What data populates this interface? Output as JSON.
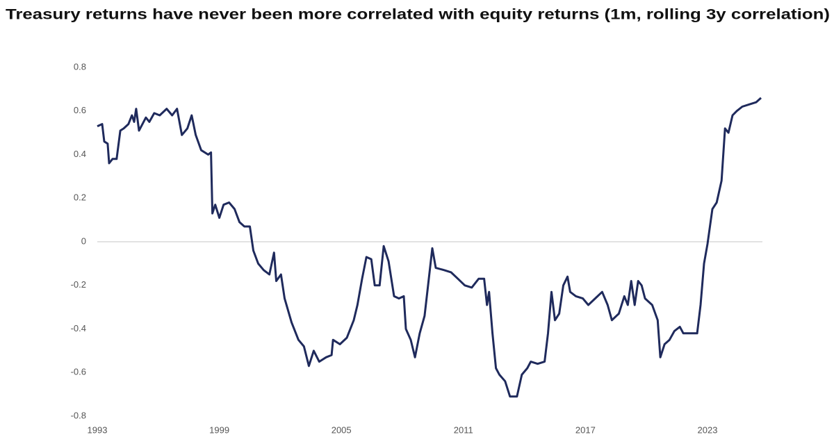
{
  "chart_data": {
    "type": "line",
    "title": "Treasury returns have never been more correlated with equity returns (1m, rolling 3y correlation)",
    "x": [
      1993,
      1993.24,
      1993.34,
      1993.51,
      1993.58,
      1993.75,
      1993.95,
      1994.13,
      1994.3,
      1994.53,
      1994.7,
      1994.81,
      1994.91,
      1995.05,
      1995.22,
      1995.39,
      1995.56,
      1995.8,
      1996.07,
      1996.41,
      1996.68,
      1996.92,
      1997.16,
      1997.43,
      1997.64,
      1997.84,
      1998.11,
      1998.45,
      1998.59,
      1998.66,
      1998.8,
      1999,
      1999.21,
      1999.48,
      1999.75,
      1999.99,
      2000.23,
      2000.5,
      2000.67,
      2000.91,
      2001.18,
      2001.46,
      2001.69,
      2001.8,
      2002.03,
      2002.21,
      2002.55,
      2002.89,
      2003.16,
      2003.4,
      2003.64,
      2003.91,
      2004.25,
      2004.52,
      2004.59,
      2004.93,
      2005.27,
      2005.61,
      2005.79,
      2006.02,
      2006.23,
      2006.47,
      2006.64,
      2006.88,
      2007.08,
      2007.32,
      2007.59,
      2007.83,
      2008.07,
      2008.17,
      2008.41,
      2008.62,
      2008.85,
      2009.09,
      2009.3,
      2009.47,
      2009.64,
      2010.05,
      2010.39,
      2010.73,
      2011.07,
      2011.41,
      2011.75,
      2012.02,
      2012.16,
      2012.26,
      2012.43,
      2012.6,
      2012.77,
      2013.05,
      2013.29,
      2013.63,
      2013.87,
      2014.14,
      2014.31,
      2014.65,
      2014.99,
      2015.16,
      2015.33,
      2015.5,
      2015.71,
      2015.91,
      2016.12,
      2016.25,
      2016.53,
      2016.87,
      2017.14,
      2017.48,
      2017.82,
      2018.09,
      2018.3,
      2018.64,
      2018.91,
      2019.08,
      2019.25,
      2019.42,
      2019.59,
      2019.76,
      2019.93,
      2020.28,
      2020.55,
      2020.68,
      2020.89,
      2021.13,
      2021.37,
      2021.64,
      2021.81,
      2022.15,
      2022.49,
      2022.66,
      2022.83,
      2023,
      2023.24,
      2023.45,
      2023.69,
      2023.86,
      2024.03,
      2024.23,
      2024.44,
      2024.71,
      2025.05,
      2025.39,
      2025.63
    ],
    "series": [
      {
        "color": "#1f2a5c",
        "values": [
          0.53,
          0.54,
          0.46,
          0.45,
          0.36,
          0.38,
          0.38,
          0.51,
          0.52,
          0.54,
          0.58,
          0.55,
          0.61,
          0.51,
          0.54,
          0.57,
          0.55,
          0.59,
          0.58,
          0.61,
          0.58,
          0.61,
          0.49,
          0.52,
          0.58,
          0.49,
          0.42,
          0.4,
          0.41,
          0.13,
          0.17,
          0.11,
          0.17,
          0.18,
          0.15,
          0.09,
          0.07,
          0.07,
          -0.04,
          -0.1,
          -0.13,
          -0.15,
          -0.05,
          -0.18,
          -0.15,
          -0.26,
          -0.37,
          -0.45,
          -0.48,
          -0.57,
          -0.5,
          -0.55,
          -0.53,
          -0.52,
          -0.45,
          -0.47,
          -0.44,
          -0.36,
          -0.29,
          -0.17,
          -0.07,
          -0.08,
          -0.2,
          -0.2,
          -0.02,
          -0.09,
          -0.25,
          -0.26,
          -0.25,
          -0.4,
          -0.45,
          -0.53,
          -0.42,
          -0.34,
          -0.17,
          -0.03,
          -0.12,
          -0.13,
          -0.14,
          -0.17,
          -0.2,
          -0.21,
          -0.17,
          -0.17,
          -0.29,
          -0.23,
          -0.42,
          -0.58,
          -0.61,
          -0.64,
          -0.71,
          -0.71,
          -0.61,
          -0.58,
          -0.55,
          -0.56,
          -0.55,
          -0.42,
          -0.23,
          -0.36,
          -0.33,
          -0.2,
          -0.16,
          -0.23,
          -0.25,
          -0.26,
          -0.29,
          -0.26,
          -0.23,
          -0.29,
          -0.36,
          -0.33,
          -0.25,
          -0.29,
          -0.18,
          -0.29,
          -0.18,
          -0.2,
          -0.26,
          -0.29,
          -0.36,
          -0.53,
          -0.47,
          -0.45,
          -0.41,
          -0.39,
          -0.42,
          -0.42,
          -0.42,
          -0.29,
          -0.1,
          -0.01,
          0.15,
          0.18,
          0.28,
          0.52,
          0.5,
          0.58,
          0.6,
          0.62,
          0.63,
          0.64,
          0.66
        ]
      }
    ],
    "xlim": [
      1993,
      2025.7
    ],
    "xticks": [
      1993,
      1999,
      2005,
      2011,
      2017,
      2023
    ],
    "ylim": [
      -0.8,
      0.8
    ],
    "yticks": [
      0.8,
      0.6,
      0.4,
      0.2,
      0,
      -0.2,
      -0.4,
      -0.6,
      -0.8
    ]
  }
}
